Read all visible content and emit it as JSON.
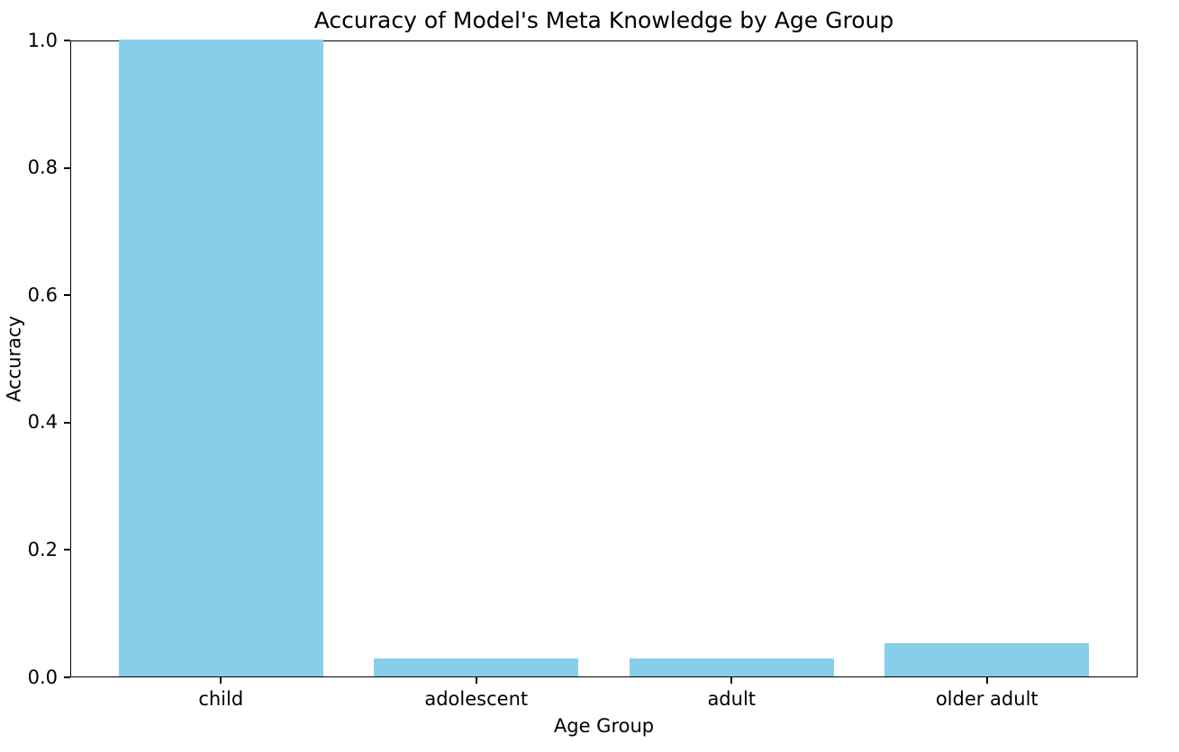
{
  "chart_data": {
    "type": "bar",
    "title": "Accuracy of Model's Meta Knowledge by Age Group",
    "xlabel": "Age Group",
    "ylabel": "Accuracy",
    "categories": [
      "child",
      "adolescent",
      "adult",
      "older adult"
    ],
    "values": [
      1.0,
      0.028,
      0.028,
      0.052
    ],
    "ytick_labels": [
      "0.0",
      "0.2",
      "0.4",
      "0.6",
      "0.8",
      "1.0"
    ],
    "yticks": [
      0.0,
      0.2,
      0.4,
      0.6,
      0.8,
      1.0
    ],
    "ylim": [
      0,
      1.0
    ],
    "xlim": [
      -0.59,
      3.59
    ],
    "bar_width": 0.8,
    "bar_color": "#87CEEB",
    "text_color": "#000000",
    "spine_color": "#000000",
    "background_color": "#ffffff",
    "grid": false,
    "legend_position": "none"
  }
}
